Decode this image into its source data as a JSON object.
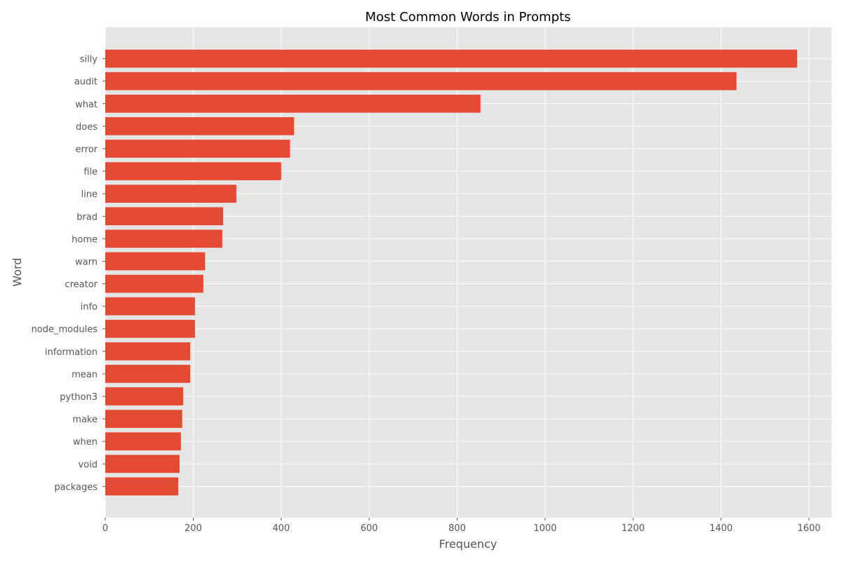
{
  "chart_data": {
    "type": "bar",
    "orientation": "horizontal",
    "title": "Most Common Words in Prompts",
    "xlabel": "Frequency",
    "ylabel": "Word",
    "categories": [
      "silly",
      "audit",
      "what",
      "does",
      "error",
      "file",
      "line",
      "brad",
      "home",
      "warn",
      "creator",
      "info",
      "node_modules",
      "information",
      "mean",
      "python3",
      "make",
      "when",
      "void",
      "packages"
    ],
    "values": [
      1573,
      1435,
      853,
      429,
      420,
      400,
      298,
      268,
      266,
      227,
      223,
      204,
      204,
      193,
      193,
      177,
      175,
      172,
      169,
      166
    ],
    "xlim": [
      0,
      1651
    ],
    "xticks": [
      "0",
      "200",
      "400",
      "600",
      "800",
      "1000",
      "1200",
      "1400",
      "1600"
    ],
    "grid": true,
    "style": "ggplot",
    "colors": {
      "bar": "#E24A33",
      "background": "#E5E5E5",
      "grid": "#FFFFFF",
      "text": "#555555"
    }
  }
}
